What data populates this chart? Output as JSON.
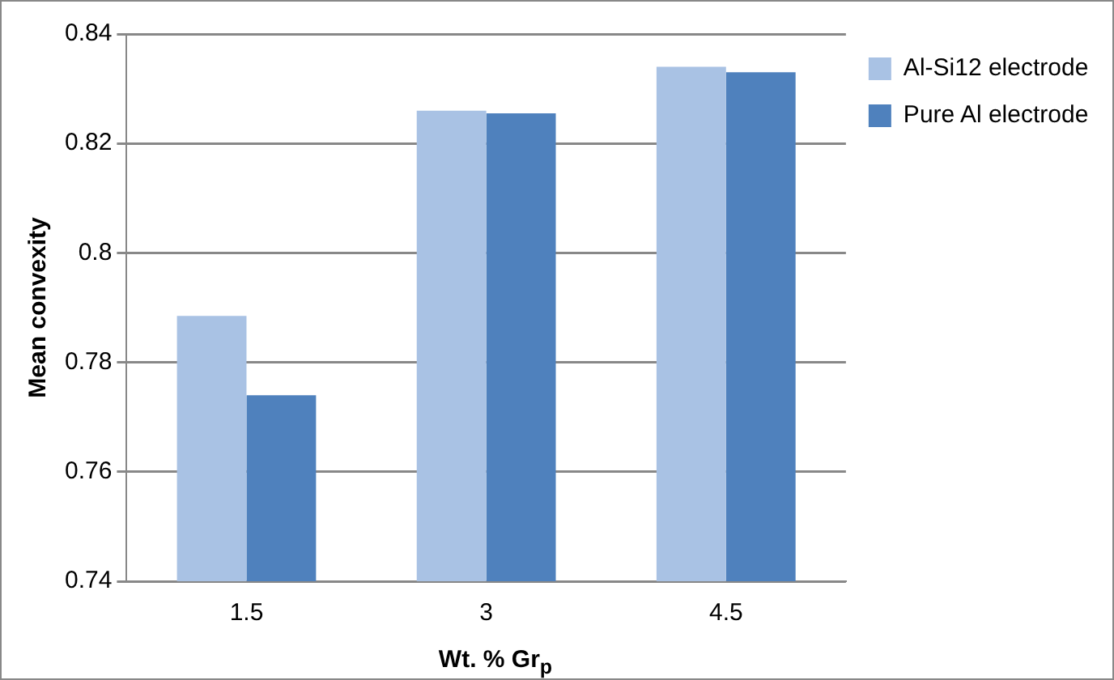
{
  "chart_data": {
    "type": "bar",
    "xlabel": "Wt. % Gr$_{p}$",
    "ylabel": "Mean convexity",
    "categories": [
      "1.5",
      "3",
      "4.5"
    ],
    "series": [
      {
        "name": "Al-Si12 electrode",
        "color": "#a9c2e4",
        "values": [
          0.7885,
          0.826,
          0.834
        ]
      },
      {
        "name": "Pure Al electrode",
        "color": "#4f81bd",
        "values": [
          0.774,
          0.8255,
          0.833
        ]
      }
    ],
    "ylim": [
      0.74,
      0.84
    ],
    "yticks": [
      0.74,
      0.76,
      0.78,
      {
        "value": 0.8,
        "label": "0.8"
      },
      0.82,
      0.84
    ],
    "grid": "y",
    "legend": "top right"
  }
}
